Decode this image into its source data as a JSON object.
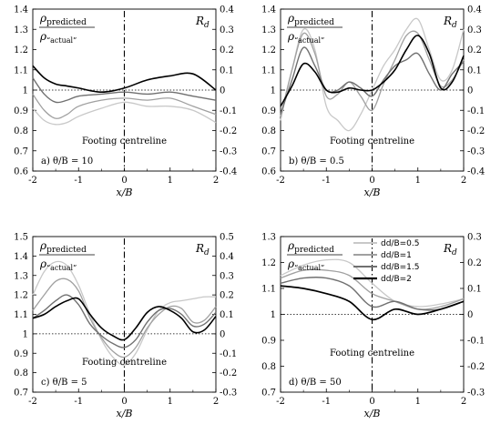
{
  "chart_data": [
    {
      "type": "line",
      "panel_label": "a)  θ/B = 10",
      "ratio_numerator": "ρ",
      "ratio_numerator_sub": "predicted",
      "ratio_denominator": "ρ",
      "ratio_denominator_sub": "“actual”",
      "right_axis_label": "R",
      "right_axis_label_sub": "d",
      "centreline_label": "Footing centreline",
      "xlabel": "x/B",
      "xlim": [
        -2,
        2
      ],
      "xticks": [
        "-2",
        "-1",
        "0",
        "1",
        "2"
      ],
      "ylim": [
        0.6,
        1.4
      ],
      "yticks": [
        "0.6",
        "0.7",
        "0.8",
        "0.9",
        "1",
        "1.1",
        "1.2",
        "1.3",
        "1.4"
      ],
      "y2lim": [
        -0.4,
        0.4
      ],
      "y2ticks": [
        "-0.4",
        "-0.3",
        "-0.2",
        "-0.1",
        "0",
        "0.1",
        "0.2",
        "0.3",
        "0.4"
      ],
      "series": [
        {
          "color": "#c8c8c8",
          "width": 1.3,
          "x": [
            -2,
            -1.75,
            -1.5,
            -1.25,
            -1,
            -0.5,
            0,
            0.5,
            1,
            1.5,
            2
          ],
          "y": [
            0.91,
            0.85,
            0.83,
            0.84,
            0.87,
            0.91,
            0.94,
            0.92,
            0.92,
            0.9,
            0.84
          ]
        },
        {
          "color": "#a0a0a0",
          "width": 1.3,
          "x": [
            -2,
            -1.75,
            -1.5,
            -1.25,
            -1,
            -0.5,
            0,
            0.5,
            1,
            1.5,
            2
          ],
          "y": [
            0.98,
            0.9,
            0.86,
            0.88,
            0.92,
            0.95,
            0.96,
            0.95,
            0.96,
            0.92,
            0.88
          ]
        },
        {
          "color": "#707070",
          "width": 1.4,
          "x": [
            -2,
            -1.75,
            -1.5,
            -1.25,
            -1,
            -0.5,
            0,
            0.5,
            1,
            1.5,
            2
          ],
          "y": [
            1.06,
            0.98,
            0.94,
            0.95,
            0.97,
            0.98,
            0.99,
            0.98,
            0.99,
            0.97,
            0.95
          ]
        },
        {
          "color": "#000000",
          "width": 1.6,
          "x": [
            -2,
            -1.75,
            -1.5,
            -1.25,
            -1,
            -0.5,
            0,
            0.5,
            1,
            1.5,
            2
          ],
          "y": [
            1.12,
            1.06,
            1.03,
            1.02,
            1.01,
            0.99,
            1.01,
            1.05,
            1.07,
            1.08,
            1.0
          ]
        }
      ]
    },
    {
      "type": "line",
      "panel_label": "b)  θ/B = 0.5",
      "ratio_numerator": "ρ",
      "ratio_numerator_sub": "predicted",
      "ratio_denominator": "ρ",
      "ratio_denominator_sub": "“actual”",
      "right_axis_label": "R",
      "right_axis_label_sub": "d",
      "centreline_label": "Footing centreline",
      "xlabel": "x/B",
      "xlim": [
        -2,
        2
      ],
      "xticks": [
        "-2",
        "-1",
        "0",
        "1",
        "2"
      ],
      "ylim": [
        0.6,
        1.4
      ],
      "yticks": [
        "0.6",
        "0.7",
        "0.8",
        "0.9",
        "1",
        "1.1",
        "1.2",
        "1.3",
        "1.4"
      ],
      "y2lim": [
        -0.4,
        0.4
      ],
      "y2ticks": [
        "-0.4",
        "-0.3",
        "-0.2",
        "-0.1",
        "0",
        "0.1",
        "0.2",
        "0.3",
        "0.4"
      ],
      "series": [
        {
          "color": "#c8c8c8",
          "width": 1.3,
          "x": [
            -2,
            -1.75,
            -1.5,
            -1.25,
            -1,
            -0.75,
            -0.5,
            -0.25,
            0,
            0.25,
            0.5,
            0.75,
            1,
            1.25,
            1.5,
            1.75,
            2
          ],
          "y": [
            0.85,
            1.1,
            1.3,
            1.2,
            0.92,
            0.85,
            0.8,
            0.88,
            1.0,
            1.12,
            1.2,
            1.3,
            1.35,
            1.2,
            1.05,
            1.1,
            1.3
          ]
        },
        {
          "color": "#a0a0a0",
          "width": 1.3,
          "x": [
            -2,
            -1.75,
            -1.5,
            -1.25,
            -1,
            -0.75,
            -0.5,
            -0.25,
            0,
            0.25,
            0.5,
            0.75,
            1,
            1.25,
            1.5,
            1.75,
            2
          ],
          "y": [
            0.87,
            1.1,
            1.28,
            1.18,
            0.97,
            0.98,
            1.04,
            0.97,
            0.9,
            1.03,
            1.15,
            1.27,
            1.28,
            1.15,
            1.02,
            1.05,
            1.15
          ]
        },
        {
          "color": "#707070",
          "width": 1.4,
          "x": [
            -2,
            -1.75,
            -1.5,
            -1.25,
            -1,
            -0.75,
            -0.5,
            -0.25,
            0,
            0.25,
            0.5,
            0.75,
            1,
            1.25,
            1.5,
            1.75,
            2
          ],
          "y": [
            0.88,
            1.05,
            1.21,
            1.12,
            1.0,
            1.0,
            1.04,
            1.01,
            0.97,
            1.05,
            1.12,
            1.15,
            1.18,
            1.08,
            1.0,
            1.08,
            1.14
          ]
        },
        {
          "color": "#000000",
          "width": 1.6,
          "x": [
            -2,
            -1.75,
            -1.5,
            -1.25,
            -1,
            -0.75,
            -0.5,
            -0.25,
            0,
            0.25,
            0.5,
            0.75,
            1,
            1.25,
            1.5,
            1.75,
            2
          ],
          "y": [
            0.92,
            1.02,
            1.13,
            1.09,
            1.0,
            0.99,
            1.01,
            1.0,
            1.0,
            1.04,
            1.1,
            1.2,
            1.27,
            1.18,
            1.01,
            1.04,
            1.17
          ]
        }
      ]
    },
    {
      "type": "line",
      "panel_label": "c)  θ/B = 5",
      "ratio_numerator": "ρ",
      "ratio_numerator_sub": "predicted",
      "ratio_denominator": "ρ",
      "ratio_denominator_sub": "“actual”",
      "right_axis_label": "R",
      "right_axis_label_sub": "d",
      "centreline_label": "Footing centreline",
      "xlabel": "x/B",
      "xlim": [
        -2,
        2
      ],
      "xticks": [
        "-2",
        "-1",
        "0",
        "1",
        "2"
      ],
      "ylim": [
        0.7,
        1.5
      ],
      "yticks": [
        "0.7",
        "0.8",
        "0.9",
        "1",
        "1.1",
        "1.2",
        "1.3",
        "1.4",
        "1.5"
      ],
      "y2lim": [
        -0.3,
        0.5
      ],
      "y2ticks": [
        "-0.3",
        "-0.2",
        "-0.1",
        "0",
        "0.1",
        "0.2",
        "0.3",
        "0.4",
        "0.5"
      ],
      "series": [
        {
          "color": "#c8c8c8",
          "width": 1.3,
          "x": [
            -2,
            -1.75,
            -1.5,
            -1.25,
            -1,
            -0.75,
            -0.5,
            -0.25,
            0,
            0.25,
            0.5,
            0.75,
            1,
            1.25,
            1.5,
            1.75,
            2
          ],
          "y": [
            1.2,
            1.32,
            1.37,
            1.35,
            1.25,
            1.1,
            0.97,
            0.88,
            0.84,
            0.9,
            1.02,
            1.12,
            1.16,
            1.17,
            1.18,
            1.19,
            1.19
          ]
        },
        {
          "color": "#a0a0a0",
          "width": 1.3,
          "x": [
            -2,
            -1.75,
            -1.5,
            -1.25,
            -1,
            -0.75,
            -0.5,
            -0.25,
            0,
            0.25,
            0.5,
            0.75,
            1,
            1.25,
            1.5,
            1.75,
            2
          ],
          "y": [
            1.12,
            1.2,
            1.27,
            1.28,
            1.22,
            1.08,
            0.98,
            0.91,
            0.88,
            0.93,
            1.03,
            1.1,
            1.14,
            1.13,
            1.06,
            1.07,
            1.14
          ]
        },
        {
          "color": "#707070",
          "width": 1.4,
          "x": [
            -2,
            -1.75,
            -1.5,
            -1.25,
            -1,
            -0.75,
            -0.5,
            -0.25,
            0,
            0.25,
            0.5,
            0.75,
            1,
            1.25,
            1.5,
            1.75,
            2
          ],
          "y": [
            1.08,
            1.12,
            1.17,
            1.2,
            1.15,
            1.05,
            0.99,
            0.95,
            0.93,
            0.97,
            1.06,
            1.12,
            1.13,
            1.1,
            1.04,
            1.05,
            1.11
          ]
        },
        {
          "color": "#000000",
          "width": 1.6,
          "x": [
            -2,
            -1.75,
            -1.5,
            -1.25,
            -1,
            -0.75,
            -0.5,
            -0.25,
            0,
            0.25,
            0.5,
            0.75,
            1,
            1.25,
            1.5,
            1.75,
            2
          ],
          "y": [
            1.08,
            1.1,
            1.14,
            1.17,
            1.18,
            1.1,
            1.03,
            0.99,
            0.97,
            1.03,
            1.11,
            1.14,
            1.12,
            1.08,
            1.01,
            1.02,
            1.09
          ]
        }
      ]
    },
    {
      "type": "line",
      "panel_label": "d)  θ/B = 50",
      "ratio_numerator": "ρ",
      "ratio_numerator_sub": "predicted",
      "ratio_denominator": "ρ",
      "ratio_denominator_sub": "“actual”",
      "right_axis_label": "R",
      "right_axis_label_sub": "d",
      "centreline_label": "Footing centreline",
      "xlabel": "x/B",
      "xlim": [
        -2,
        2
      ],
      "xticks": [
        "-2",
        "-1",
        "0",
        "1",
        "2"
      ],
      "ylim": [
        0.7,
        1.3
      ],
      "yticks": [
        "0.7",
        "0.8",
        "0.9",
        "1",
        "1.1",
        "1.2",
        "1.3"
      ],
      "y2lim": [
        -0.3,
        0.3
      ],
      "y2ticks": [
        "-0.3",
        "-0.2",
        "-0.1",
        "0",
        "0.1",
        "0.2",
        "0.3"
      ],
      "legend": {
        "placement": "top-right",
        "entries": [
          "dd/B=0.5",
          "dd/B=1",
          "dd/B=1.5",
          "dd/B=2"
        ]
      },
      "series": [
        {
          "name": "dd/B=0.5",
          "color": "#c8c8c8",
          "width": 1.3,
          "x": [
            -2,
            -1.5,
            -1,
            -0.5,
            0,
            0.5,
            1,
            1.5,
            2
          ],
          "y": [
            1.15,
            1.19,
            1.21,
            1.2,
            1.12,
            1.05,
            1.03,
            1.04,
            1.06
          ]
        },
        {
          "name": "dd/B=1",
          "color": "#a0a0a0",
          "width": 1.3,
          "x": [
            -2,
            -1.5,
            -1,
            -0.5,
            0,
            0.5,
            1,
            1.5,
            2
          ],
          "y": [
            1.14,
            1.17,
            1.17,
            1.15,
            1.08,
            1.05,
            1.02,
            1.03,
            1.06
          ]
        },
        {
          "name": "dd/B=1.5",
          "color": "#707070",
          "width": 1.4,
          "x": [
            -2,
            -1.5,
            -1,
            -0.5,
            0,
            0.5,
            1,
            1.5,
            2
          ],
          "y": [
            1.12,
            1.14,
            1.14,
            1.11,
            1.03,
            1.05,
            1.02,
            1.02,
            1.05
          ]
        },
        {
          "name": "dd/B=2",
          "color": "#000000",
          "width": 1.7,
          "x": [
            -2,
            -1.5,
            -1,
            -0.5,
            0,
            0.5,
            1,
            1.5,
            2
          ],
          "y": [
            1.11,
            1.1,
            1.08,
            1.05,
            0.98,
            1.02,
            1.0,
            1.02,
            1.05
          ]
        }
      ]
    }
  ]
}
